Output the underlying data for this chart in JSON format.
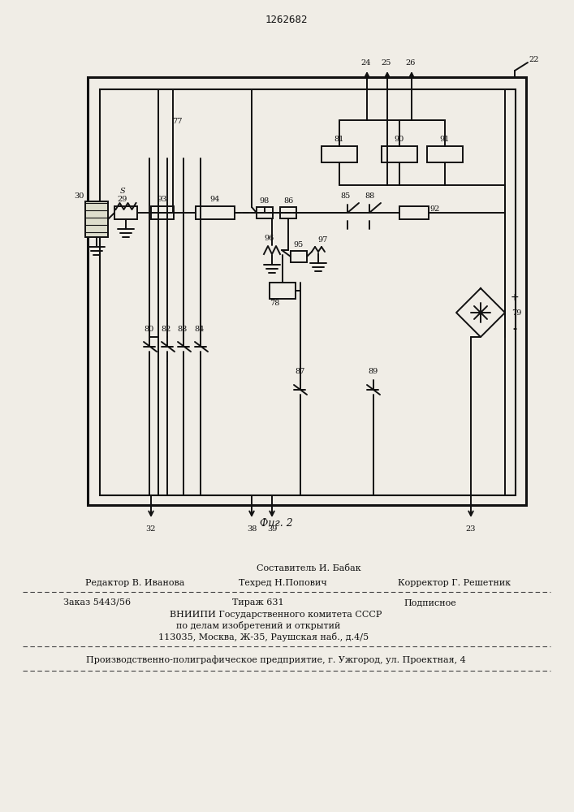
{
  "title": "1262682",
  "fig_label": "Фиг. 2",
  "bg": "#f0ede6",
  "lc": "#111111",
  "footer": {
    "sestavitel": "Составитель И. Бабак",
    "redaktor": "Редактор В. Иванова",
    "tehred": "Техред Н.Попович",
    "korrektor": "Корректор Г. Решетник",
    "zakaz": "Заказ 5443/56",
    "tirazh": "Тираж 631",
    "podpisnoe": "Подписное",
    "vnipi1": "ВНИИПИ Государственного комитета СССР",
    "vnipi2": "по делам изобретений и открытий",
    "vnipi3": "113035, Москва, Ж-35, Раушская наб., д.4/5",
    "proizv": "Производственно-полиграфическое предприятие, г. Ужгород, ул. Проектная, 4"
  }
}
